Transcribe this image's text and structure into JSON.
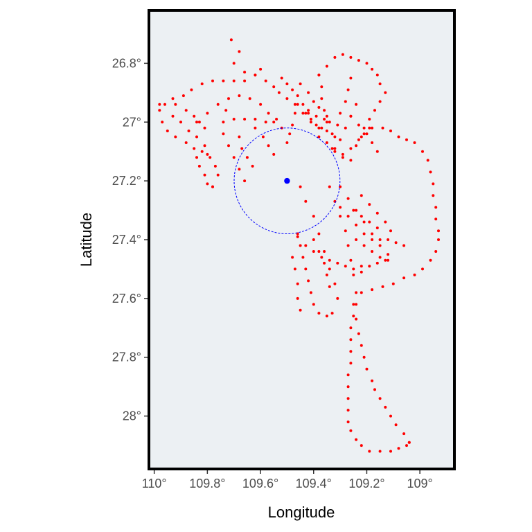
{
  "chart_data": {
    "type": "scatter",
    "title": "",
    "xlabel": "Longitude",
    "ylabel": "Latitude",
    "x_reversed": true,
    "y_reversed": true,
    "xlim": [
      110.02,
      108.87
    ],
    "ylim": [
      26.62,
      28.18
    ],
    "x_ticks": [
      {
        "value": 110.0,
        "label": "110°"
      },
      {
        "value": 109.8,
        "label": "109.8°"
      },
      {
        "value": 109.6,
        "label": "109.6°"
      },
      {
        "value": 109.4,
        "label": "109.4°"
      },
      {
        "value": 109.2,
        "label": "109.2°"
      },
      {
        "value": 109.0,
        "label": "109°"
      }
    ],
    "y_ticks": [
      {
        "value": 26.8,
        "label": "26.8°"
      },
      {
        "value": 27.0,
        "label": "27°"
      },
      {
        "value": 27.2,
        "label": "27.2°"
      },
      {
        "value": 27.4,
        "label": "27.4°"
      },
      {
        "value": 27.6,
        "label": "27.6°"
      },
      {
        "value": 27.8,
        "label": "27.8°"
      },
      {
        "value": 28.0,
        "label": "28°"
      }
    ],
    "panel_background": "#ECF0F3",
    "grid": false,
    "legend": "none",
    "center_point": {
      "x": 109.5,
      "y": 27.2,
      "color": "#0000FF"
    },
    "buffer_circle": {
      "center_x": 109.5,
      "center_y": 27.2,
      "radius_deg": 0.18,
      "color": "#0000FF",
      "style": "dashed"
    },
    "track_color": "#FF0000",
    "tracks": [
      [
        [
          109.71,
          26.72
        ],
        [
          109.68,
          26.76
        ],
        [
          109.7,
          26.8
        ],
        [
          109.66,
          26.83
        ],
        [
          109.62,
          26.84
        ],
        [
          109.6,
          26.82
        ],
        [
          109.58,
          26.86
        ],
        [
          109.55,
          26.88
        ],
        [
          109.53,
          26.9
        ],
        [
          109.5,
          26.92
        ],
        [
          109.47,
          26.94
        ],
        [
          109.44,
          26.97
        ],
        [
          109.41,
          27.0
        ],
        [
          109.38,
          27.02
        ]
      ],
      [
        [
          109.62,
          26.84
        ],
        [
          109.66,
          26.86
        ],
        [
          109.7,
          26.86
        ],
        [
          109.74,
          26.86
        ],
        [
          109.78,
          26.86
        ],
        [
          109.82,
          26.87
        ],
        [
          109.86,
          26.89
        ],
        [
          109.89,
          26.91
        ],
        [
          109.93,
          26.92
        ],
        [
          109.96,
          26.94
        ],
        [
          109.98,
          26.96
        ],
        [
          109.97,
          27.0
        ],
        [
          109.95,
          27.03
        ],
        [
          109.92,
          27.05
        ],
        [
          109.88,
          27.07
        ],
        [
          109.85,
          27.09
        ],
        [
          109.82,
          27.1
        ],
        [
          109.8,
          27.11
        ]
      ],
      [
        [
          109.98,
          26.94
        ],
        [
          109.93,
          26.98
        ],
        [
          109.9,
          27.0
        ],
        [
          109.87,
          27.03
        ],
        [
          109.84,
          27.05
        ],
        [
          109.81,
          27.08
        ],
        [
          109.79,
          27.12
        ],
        [
          109.77,
          27.15
        ],
        [
          109.76,
          27.18
        ],
        [
          109.78,
          27.22
        ]
      ],
      [
        [
          109.84,
          27.0
        ],
        [
          109.8,
          26.97
        ],
        [
          109.76,
          26.94
        ],
        [
          109.72,
          26.92
        ],
        [
          109.68,
          26.91
        ],
        [
          109.64,
          26.92
        ],
        [
          109.6,
          26.94
        ],
        [
          109.57,
          26.97
        ],
        [
          109.54,
          26.99
        ],
        [
          109.52,
          27.02
        ]
      ],
      [
        [
          109.7,
          26.99
        ],
        [
          109.66,
          26.99
        ],
        [
          109.62,
          26.99
        ],
        [
          109.58,
          27.0
        ],
        [
          109.55,
          27.0
        ]
      ],
      [
        [
          109.73,
          26.96
        ],
        [
          109.74,
          27.0
        ],
        [
          109.74,
          27.04
        ],
        [
          109.72,
          27.08
        ],
        [
          109.7,
          27.12
        ],
        [
          109.68,
          27.16
        ],
        [
          109.66,
          27.2
        ]
      ],
      [
        [
          109.52,
          26.85
        ],
        [
          109.5,
          26.87
        ],
        [
          109.48,
          26.89
        ],
        [
          109.46,
          26.91
        ],
        [
          109.44,
          26.94
        ],
        [
          109.42,
          26.96
        ]
      ],
      [
        [
          109.45,
          26.87
        ],
        [
          109.42,
          26.9
        ],
        [
          109.4,
          26.93
        ],
        [
          109.38,
          26.95
        ],
        [
          109.35,
          26.98
        ]
      ],
      [
        [
          109.42,
          26.97
        ],
        [
          109.39,
          26.98
        ],
        [
          109.36,
          26.99
        ],
        [
          109.34,
          27.0
        ]
      ],
      [
        [
          109.46,
          26.94
        ],
        [
          109.43,
          26.97
        ],
        [
          109.41,
          26.99
        ],
        [
          109.39,
          27.01
        ],
        [
          109.37,
          27.02
        ],
        [
          109.35,
          27.03
        ],
        [
          109.33,
          27.04
        ]
      ],
      [
        [
          109.38,
          26.84
        ],
        [
          109.35,
          26.81
        ],
        [
          109.32,
          26.78
        ],
        [
          109.29,
          26.77
        ],
        [
          109.26,
          26.78
        ],
        [
          109.23,
          26.79
        ],
        [
          109.2,
          26.8
        ],
        [
          109.18,
          26.82
        ],
        [
          109.16,
          26.84
        ],
        [
          109.15,
          26.87
        ],
        [
          109.13,
          26.9
        ],
        [
          109.15,
          26.93
        ],
        [
          109.17,
          26.96
        ],
        [
          109.19,
          26.99
        ],
        [
          109.21,
          27.02
        ],
        [
          109.22,
          27.05
        ],
        [
          109.24,
          27.08
        ]
      ],
      [
        [
          109.38,
          26.84
        ],
        [
          109.37,
          26.88
        ],
        [
          109.37,
          26.92
        ],
        [
          109.36,
          26.96
        ],
        [
          109.35,
          27.0
        ]
      ],
      [
        [
          109.26,
          26.85
        ],
        [
          109.27,
          26.89
        ],
        [
          109.28,
          26.93
        ],
        [
          109.3,
          26.97
        ],
        [
          109.31,
          27.01
        ],
        [
          109.32,
          27.05
        ],
        [
          109.33,
          27.09
        ]
      ],
      [
        [
          109.26,
          26.98
        ],
        [
          109.23,
          27.01
        ],
        [
          109.2,
          27.04
        ],
        [
          109.18,
          27.07
        ],
        [
          109.16,
          27.1
        ]
      ],
      [
        [
          109.18,
          27.02
        ],
        [
          109.14,
          27.02
        ],
        [
          109.11,
          27.03
        ],
        [
          109.08,
          27.05
        ],
        [
          109.05,
          27.06
        ],
        [
          109.02,
          27.07
        ],
        [
          108.99,
          27.1
        ],
        [
          108.97,
          27.13
        ],
        [
          108.96,
          27.17
        ],
        [
          108.95,
          27.21
        ],
        [
          108.95,
          27.25
        ],
        [
          108.94,
          27.29
        ],
        [
          108.94,
          27.33
        ],
        [
          108.93,
          27.37
        ],
        [
          108.93,
          27.4
        ],
        [
          108.94,
          27.44
        ],
        [
          108.96,
          27.47
        ],
        [
          108.99,
          27.5
        ],
        [
          109.02,
          27.52
        ],
        [
          109.06,
          27.53
        ],
        [
          109.1,
          27.55
        ],
        [
          109.14,
          27.56
        ],
        [
          109.18,
          27.57
        ],
        [
          109.22,
          27.58
        ]
      ],
      [
        [
          109.24,
          27.58
        ],
        [
          109.25,
          27.62
        ],
        [
          109.25,
          27.66
        ],
        [
          109.26,
          27.7
        ],
        [
          109.26,
          27.74
        ],
        [
          109.26,
          27.78
        ],
        [
          109.26,
          27.82
        ],
        [
          109.27,
          27.86
        ],
        [
          109.27,
          27.9
        ],
        [
          109.27,
          27.94
        ],
        [
          109.27,
          27.98
        ],
        [
          109.27,
          28.02
        ],
        [
          109.26,
          28.05
        ],
        [
          109.24,
          28.08
        ],
        [
          109.22,
          28.1
        ],
        [
          109.19,
          28.12
        ],
        [
          109.15,
          28.12
        ],
        [
          109.11,
          28.12
        ],
        [
          109.08,
          28.11
        ],
        [
          109.05,
          28.1
        ],
        [
          109.04,
          28.09
        ]
      ],
      [
        [
          109.04,
          28.09
        ],
        [
          109.06,
          28.06
        ],
        [
          109.09,
          28.03
        ],
        [
          109.11,
          28.0
        ],
        [
          109.13,
          27.97
        ],
        [
          109.15,
          27.94
        ],
        [
          109.17,
          27.91
        ],
        [
          109.18,
          27.88
        ],
        [
          109.2,
          27.84
        ],
        [
          109.21,
          27.8
        ],
        [
          109.22,
          27.76
        ],
        [
          109.23,
          27.72
        ],
        [
          109.24,
          27.67
        ],
        [
          109.24,
          27.62
        ]
      ],
      [
        [
          109.45,
          27.22
        ],
        [
          109.43,
          27.27
        ],
        [
          109.4,
          27.32
        ],
        [
          109.38,
          27.38
        ],
        [
          109.36,
          27.44
        ],
        [
          109.34,
          27.5
        ],
        [
          109.32,
          27.55
        ],
        [
          109.31,
          27.6
        ]
      ],
      [
        [
          109.46,
          27.38
        ],
        [
          109.45,
          27.42
        ],
        [
          109.44,
          27.46
        ],
        [
          109.43,
          27.5
        ],
        [
          109.42,
          27.54
        ],
        [
          109.41,
          27.58
        ],
        [
          109.4,
          27.62
        ],
        [
          109.38,
          27.65
        ],
        [
          109.35,
          27.66
        ],
        [
          109.33,
          27.65
        ]
      ],
      [
        [
          109.46,
          27.39
        ],
        [
          109.43,
          27.42
        ],
        [
          109.4,
          27.44
        ],
        [
          109.37,
          27.46
        ],
        [
          109.34,
          27.47
        ],
        [
          109.31,
          27.48
        ],
        [
          109.28,
          27.49
        ],
        [
          109.25,
          27.5
        ],
        [
          109.22,
          27.51
        ]
      ],
      [
        [
          109.3,
          27.22
        ],
        [
          109.27,
          27.26
        ],
        [
          109.24,
          27.3
        ],
        [
          109.21,
          27.34
        ],
        [
          109.18,
          27.38
        ],
        [
          109.15,
          27.42
        ],
        [
          109.12,
          27.45
        ]
      ],
      [
        [
          109.34,
          27.22
        ],
        [
          109.32,
          27.27
        ],
        [
          109.3,
          27.32
        ],
        [
          109.28,
          27.37
        ],
        [
          109.27,
          27.42
        ],
        [
          109.26,
          27.47
        ],
        [
          109.25,
          27.52
        ]
      ],
      [
        [
          109.3,
          27.29
        ],
        [
          109.27,
          27.32
        ],
        [
          109.24,
          27.35
        ],
        [
          109.21,
          27.38
        ],
        [
          109.18,
          27.4
        ],
        [
          109.15,
          27.4
        ],
        [
          109.12,
          27.4
        ],
        [
          109.09,
          27.41
        ],
        [
          109.06,
          27.42
        ]
      ],
      [
        [
          109.24,
          27.4
        ],
        [
          109.21,
          27.42
        ],
        [
          109.18,
          27.44
        ],
        [
          109.15,
          27.46
        ],
        [
          109.12,
          27.47
        ]
      ],
      [
        [
          109.4,
          27.4
        ],
        [
          109.38,
          27.44
        ],
        [
          109.36,
          27.48
        ],
        [
          109.35,
          27.52
        ],
        [
          109.34,
          27.56
        ]
      ],
      [
        [
          109.22,
          27.25
        ],
        [
          109.19,
          27.28
        ],
        [
          109.16,
          27.31
        ],
        [
          109.13,
          27.34
        ],
        [
          109.11,
          27.37
        ]
      ],
      [
        [
          109.32,
          27.1
        ],
        [
          109.3,
          27.06
        ],
        [
          109.28,
          27.02
        ],
        [
          109.26,
          26.98
        ],
        [
          109.24,
          26.94
        ]
      ],
      [
        [
          109.29,
          27.12
        ],
        [
          109.26,
          27.09
        ],
        [
          109.23,
          27.06
        ],
        [
          109.21,
          27.04
        ],
        [
          109.19,
          27.02
        ]
      ],
      [
        [
          109.38,
          27.05
        ],
        [
          109.35,
          27.07
        ],
        [
          109.32,
          27.09
        ],
        [
          109.29,
          27.11
        ],
        [
          109.26,
          27.13
        ]
      ],
      [
        [
          109.92,
          26.94
        ],
        [
          109.88,
          26.96
        ],
        [
          109.85,
          26.98
        ],
        [
          109.83,
          27.0
        ],
        [
          109.81,
          27.02
        ]
      ],
      [
        [
          109.84,
          27.12
        ],
        [
          109.83,
          27.15
        ],
        [
          109.81,
          27.18
        ],
        [
          109.8,
          27.21
        ],
        [
          109.78,
          27.22
        ]
      ],
      [
        [
          109.68,
          27.05
        ],
        [
          109.67,
          27.09
        ],
        [
          109.65,
          27.12
        ],
        [
          109.63,
          27.15
        ]
      ],
      [
        [
          109.62,
          27.02
        ],
        [
          109.59,
          27.05
        ],
        [
          109.57,
          27.08
        ],
        [
          109.55,
          27.11
        ]
      ],
      [
        [
          109.47,
          26.97
        ],
        [
          109.48,
          27.01
        ],
        [
          109.49,
          27.04
        ],
        [
          109.5,
          27.07
        ]
      ],
      [
        [
          109.48,
          27.46
        ],
        [
          109.47,
          27.5
        ],
        [
          109.46,
          27.55
        ],
        [
          109.46,
          27.6
        ],
        [
          109.45,
          27.64
        ]
      ],
      [
        [
          109.22,
          27.49
        ],
        [
          109.19,
          27.49
        ],
        [
          109.16,
          27.48
        ],
        [
          109.13,
          27.47
        ]
      ],
      [
        [
          109.25,
          27.3
        ],
        [
          109.22,
          27.32
        ],
        [
          109.19,
          27.34
        ],
        [
          109.16,
          27.36
        ]
      ]
    ]
  }
}
